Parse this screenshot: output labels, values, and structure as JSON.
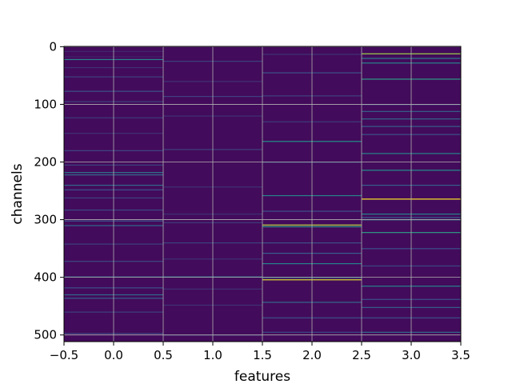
{
  "chart_data": {
    "type": "heatmap",
    "title": "",
    "xlabel": "features",
    "ylabel": "channels",
    "xlim": [
      -0.5,
      3.5
    ],
    "ylim": [
      511.5,
      -0.5
    ],
    "y_inverted": true,
    "x_ticks": [
      -0.5,
      0.0,
      0.5,
      1.0,
      1.5,
      2.0,
      2.5,
      3.0,
      3.5
    ],
    "x_tick_labels": [
      "−0.5",
      "0.0",
      "0.5",
      "1.0",
      "1.5",
      "2.0",
      "2.5",
      "3.0",
      "3.5"
    ],
    "y_ticks": [
      0,
      100,
      200,
      300,
      400,
      500
    ],
    "y_tick_labels": [
      "0",
      "100",
      "200",
      "300",
      "400",
      "500"
    ],
    "grid": true,
    "colormap": "viridis",
    "colormap_stops": [
      "#440154",
      "#3b528b",
      "#21918c",
      "#5ec962",
      "#fde725"
    ],
    "value_range": [
      0,
      1
    ],
    "background_value": 0.03,
    "columns": [
      {
        "feature": 0,
        "bright_rows": [
          {
            "channel": 8,
            "value": 0.12
          },
          {
            "channel": 17,
            "value": 0.1
          },
          {
            "channel": 22,
            "value": 0.45
          },
          {
            "channel": 36,
            "value": 0.15
          },
          {
            "channel": 52,
            "value": 0.2
          },
          {
            "channel": 77,
            "value": 0.25
          },
          {
            "channel": 95,
            "value": 0.2
          },
          {
            "channel": 123,
            "value": 0.18
          },
          {
            "channel": 150,
            "value": 0.15
          },
          {
            "channel": 180,
            "value": 0.22
          },
          {
            "channel": 205,
            "value": 0.2
          },
          {
            "channel": 218,
            "value": 0.4
          },
          {
            "channel": 222,
            "value": 0.35
          },
          {
            "channel": 240,
            "value": 0.35
          },
          {
            "channel": 248,
            "value": 0.25
          },
          {
            "channel": 262,
            "value": 0.2
          },
          {
            "channel": 283,
            "value": 0.22
          },
          {
            "channel": 302,
            "value": 0.25
          },
          {
            "channel": 310,
            "value": 0.35
          },
          {
            "channel": 342,
            "value": 0.2
          },
          {
            "channel": 372,
            "value": 0.22
          },
          {
            "channel": 399,
            "value": 0.3
          },
          {
            "channel": 418,
            "value": 0.25
          },
          {
            "channel": 430,
            "value": 0.35
          },
          {
            "channel": 436,
            "value": 0.3
          },
          {
            "channel": 460,
            "value": 0.2
          },
          {
            "channel": 497,
            "value": 0.22
          }
        ]
      },
      {
        "feature": 1,
        "bright_rows": [
          {
            "channel": 25,
            "value": 0.2
          },
          {
            "channel": 60,
            "value": 0.15
          },
          {
            "channel": 86,
            "value": 0.2
          },
          {
            "channel": 120,
            "value": 0.15
          },
          {
            "channel": 178,
            "value": 0.2
          },
          {
            "channel": 243,
            "value": 0.15
          },
          {
            "channel": 290,
            "value": 0.15
          },
          {
            "channel": 305,
            "value": 0.18
          },
          {
            "channel": 340,
            "value": 0.2
          },
          {
            "channel": 368,
            "value": 0.15
          },
          {
            "channel": 399,
            "value": 0.4
          },
          {
            "channel": 420,
            "value": 0.15
          },
          {
            "channel": 448,
            "value": 0.15
          },
          {
            "channel": 500,
            "value": 0.18
          }
        ]
      },
      {
        "feature": 2,
        "bright_rows": [
          {
            "channel": 13,
            "value": 0.15
          },
          {
            "channel": 45,
            "value": 0.25
          },
          {
            "channel": 85,
            "value": 0.2
          },
          {
            "channel": 130,
            "value": 0.18
          },
          {
            "channel": 164,
            "value": 0.5
          },
          {
            "channel": 200,
            "value": 0.25
          },
          {
            "channel": 258,
            "value": 0.45
          },
          {
            "channel": 285,
            "value": 0.25
          },
          {
            "channel": 309,
            "value": 0.9
          },
          {
            "channel": 312,
            "value": 0.55
          },
          {
            "channel": 340,
            "value": 0.25
          },
          {
            "channel": 358,
            "value": 0.3
          },
          {
            "channel": 376,
            "value": 0.45
          },
          {
            "channel": 400,
            "value": 0.5
          },
          {
            "channel": 404,
            "value": 0.95
          },
          {
            "channel": 443,
            "value": 0.35
          },
          {
            "channel": 470,
            "value": 0.25
          },
          {
            "channel": 495,
            "value": 0.22
          }
        ]
      },
      {
        "feature": 3,
        "bright_rows": [
          {
            "channel": 12,
            "value": 0.85
          },
          {
            "channel": 20,
            "value": 0.4
          },
          {
            "channel": 28,
            "value": 0.45
          },
          {
            "channel": 56,
            "value": 0.55
          },
          {
            "channel": 100,
            "value": 0.25
          },
          {
            "channel": 112,
            "value": 0.3
          },
          {
            "channel": 125,
            "value": 0.35
          },
          {
            "channel": 138,
            "value": 0.3
          },
          {
            "channel": 152,
            "value": 0.25
          },
          {
            "channel": 185,
            "value": 0.45
          },
          {
            "channel": 214,
            "value": 0.5
          },
          {
            "channel": 240,
            "value": 0.3
          },
          {
            "channel": 264,
            "value": 1.0
          },
          {
            "channel": 290,
            "value": 0.45
          },
          {
            "channel": 296,
            "value": 0.3
          },
          {
            "channel": 300,
            "value": 0.4
          },
          {
            "channel": 322,
            "value": 0.55
          },
          {
            "channel": 350,
            "value": 0.25
          },
          {
            "channel": 380,
            "value": 0.22
          },
          {
            "channel": 415,
            "value": 0.45
          },
          {
            "channel": 438,
            "value": 0.25
          },
          {
            "channel": 452,
            "value": 0.3
          },
          {
            "channel": 470,
            "value": 0.25
          },
          {
            "channel": 495,
            "value": 0.35
          }
        ]
      }
    ]
  }
}
